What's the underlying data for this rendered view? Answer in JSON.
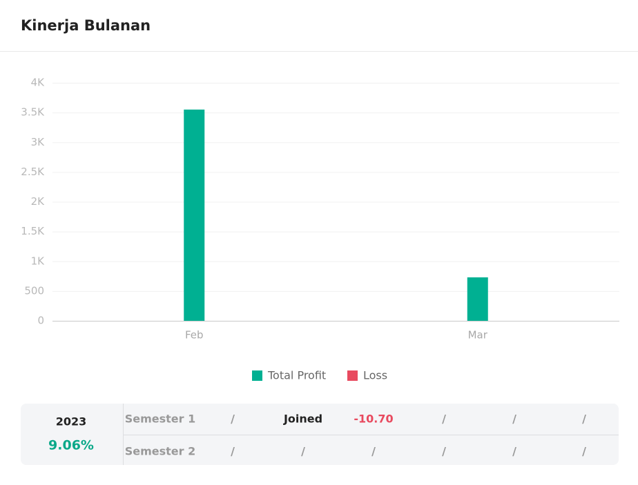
{
  "header": {
    "title": "Kinerja Bulanan"
  },
  "chart_data": {
    "type": "bar",
    "categories": [
      "Feb",
      "Mar"
    ],
    "series": [
      {
        "name": "Total Profit",
        "color": "#00b092",
        "values": [
          3550,
          730
        ]
      },
      {
        "name": "Loss",
        "color": "#e84a5f",
        "values": [
          0,
          0
        ]
      }
    ],
    "ylim": [
      0,
      4000
    ],
    "yticks": [
      0,
      500,
      {
        "value": 1000,
        "label": "1K"
      },
      {
        "value": 1500,
        "label": "1.5K"
      },
      {
        "value": 2000,
        "label": "2K"
      },
      {
        "value": 2500,
        "label": "2.5K"
      },
      {
        "value": 3000,
        "label": "3K"
      },
      {
        "value": 3500,
        "label": "3.5K"
      },
      {
        "value": 4000,
        "label": "4K"
      }
    ],
    "grid": true
  },
  "table": {
    "year": "2023",
    "return": "9.06%",
    "rows": [
      [
        "Semester 1",
        "/",
        "Joined",
        "-10.70",
        "/",
        "/",
        "/"
      ],
      [
        "Semester 2",
        "/",
        "/",
        "/",
        "/",
        "/",
        "/"
      ]
    ]
  }
}
